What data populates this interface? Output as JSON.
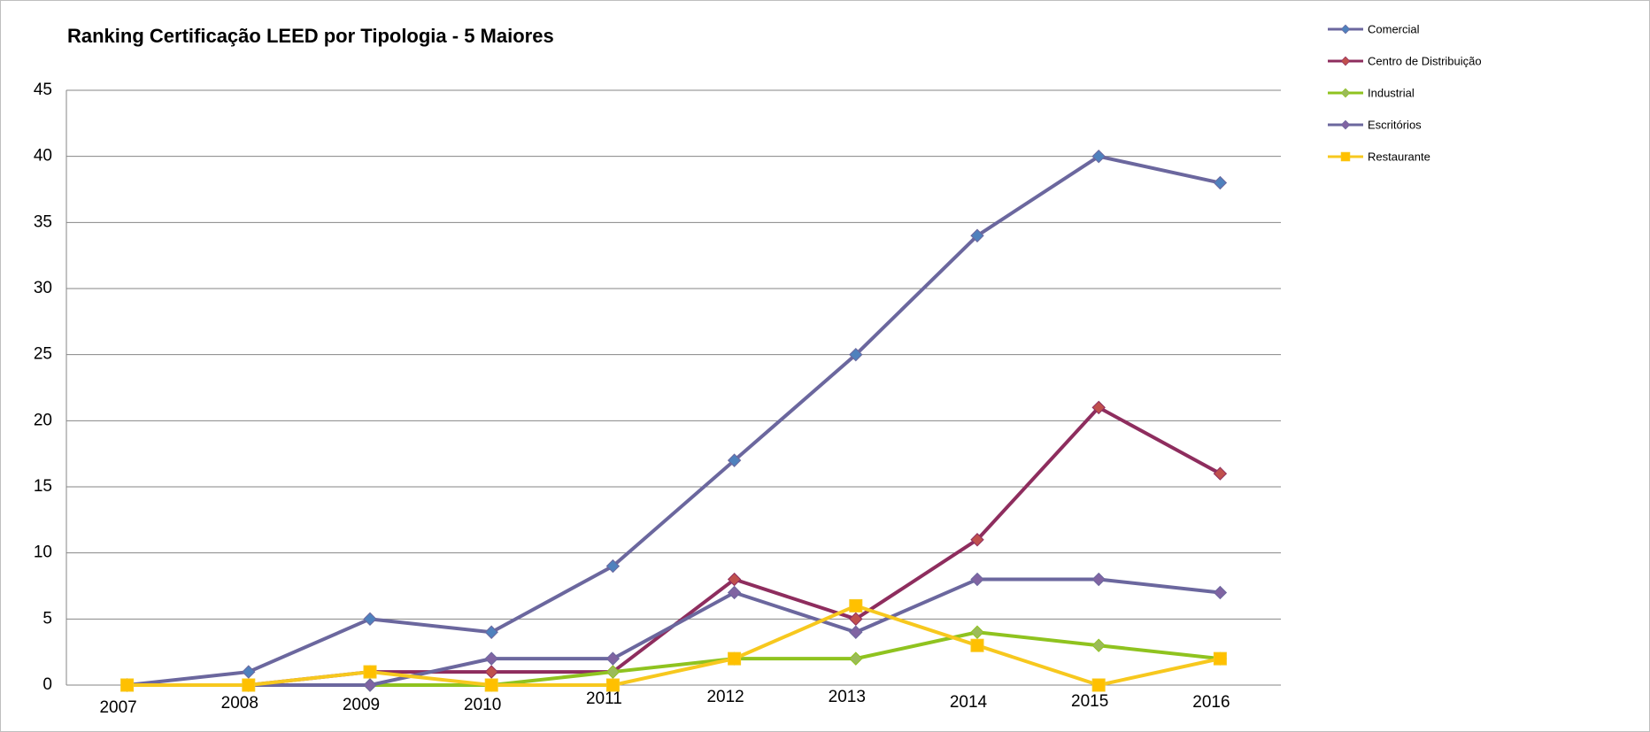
{
  "chart_data": {
    "type": "line",
    "title": "Ranking Certificação LEED por Tipologia - 5 Maiores",
    "categories": [
      "2007",
      "2008",
      "2009",
      "2010",
      "2011",
      "2012",
      "2013",
      "2014",
      "2015",
      "2016"
    ],
    "series": [
      {
        "name": "Comercial",
        "color": "#6b679e",
        "marker_color": "#4f81bd",
        "marker": "diamond",
        "values": [
          0,
          1,
          5,
          4,
          9,
          17,
          25,
          34,
          40,
          38
        ]
      },
      {
        "name": "Centro de Distribuição",
        "color": "#8e2d5e",
        "marker_color": "#c0504d",
        "marker": "diamond",
        "values": [
          0,
          0,
          1,
          1,
          1,
          8,
          5,
          11,
          21,
          16
        ]
      },
      {
        "name": "Industrial",
        "color": "#8fc31f",
        "marker_color": "#9bbb59",
        "marker": "diamond",
        "values": [
          0,
          0,
          0,
          0,
          1,
          2,
          2,
          4,
          3,
          2
        ]
      },
      {
        "name": "Escritórios",
        "color": "#6b679e",
        "marker_color": "#8064a2",
        "marker": "diamond",
        "values": [
          0,
          0,
          0,
          2,
          2,
          7,
          4,
          8,
          8,
          7
        ]
      },
      {
        "name": "Restaurante",
        "color": "#f7c81e",
        "marker_color": "#ffc000",
        "marker": "square",
        "values": [
          0,
          0,
          1,
          0,
          0,
          2,
          6,
          3,
          0,
          2
        ]
      }
    ],
    "ylim": [
      0,
      45
    ],
    "yticks": [
      0,
      5,
      10,
      15,
      20,
      25,
      30,
      35,
      40,
      45
    ],
    "grid": true,
    "legend": "right"
  }
}
